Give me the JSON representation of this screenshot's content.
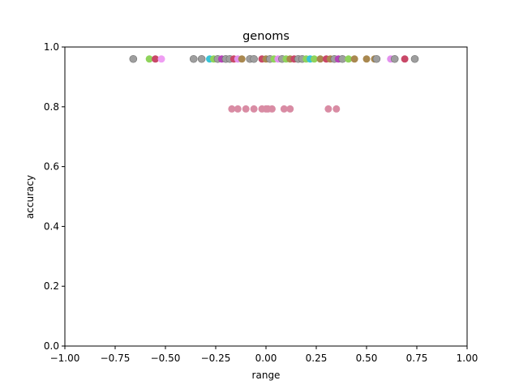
{
  "chart_data": {
    "type": "scatter",
    "title": "genoms",
    "xlabel": "range",
    "ylabel": "accuracy",
    "xlim": [
      -1.0,
      1.0
    ],
    "ylim": [
      0.0,
      1.0
    ],
    "x_ticks": [
      "−1.00",
      "−0.75",
      "−0.50",
      "−0.25",
      "0.00",
      "0.25",
      "0.50",
      "0.75",
      "1.00"
    ],
    "y_ticks": [
      "0.0",
      "0.2",
      "0.4",
      "0.6",
      "0.8",
      "1.0"
    ],
    "grid": false,
    "legend": "none",
    "points": [
      {
        "x": -0.66,
        "y": 0.96,
        "color": "#9e9e9e"
      },
      {
        "x": -0.58,
        "y": 0.96,
        "color": "#8fd35b"
      },
      {
        "x": -0.55,
        "y": 0.96,
        "color": "#c94868"
      },
      {
        "x": -0.52,
        "y": 0.96,
        "color": "#ef9ef3"
      },
      {
        "x": -0.36,
        "y": 0.96,
        "color": "#9e9e9e"
      },
      {
        "x": -0.32,
        "y": 0.96,
        "color": "#9e9e9e"
      },
      {
        "x": -0.28,
        "y": 0.96,
        "color": "#37c4d8"
      },
      {
        "x": -0.26,
        "y": 0.96,
        "color": "#8fd35b"
      },
      {
        "x": -0.24,
        "y": 0.96,
        "color": "#9e9e9e"
      },
      {
        "x": -0.22,
        "y": 0.96,
        "color": "#b543b8"
      },
      {
        "x": -0.2,
        "y": 0.96,
        "color": "#9e9e9e"
      },
      {
        "x": -0.18,
        "y": 0.96,
        "color": "#9e9e9e"
      },
      {
        "x": -0.16,
        "y": 0.96,
        "color": "#c94868"
      },
      {
        "x": -0.14,
        "y": 0.96,
        "color": "#e391ee"
      },
      {
        "x": -0.12,
        "y": 0.96,
        "color": "#a9884f"
      },
      {
        "x": -0.08,
        "y": 0.96,
        "color": "#9e9e9e"
      },
      {
        "x": -0.06,
        "y": 0.96,
        "color": "#9e9e9e"
      },
      {
        "x": -0.02,
        "y": 0.96,
        "color": "#c94868"
      },
      {
        "x": 0.0,
        "y": 0.96,
        "color": "#a9884f"
      },
      {
        "x": 0.02,
        "y": 0.96,
        "color": "#9e9e9e"
      },
      {
        "x": 0.04,
        "y": 0.96,
        "color": "#8fd35b"
      },
      {
        "x": 0.06,
        "y": 0.96,
        "color": "#e391ee"
      },
      {
        "x": 0.08,
        "y": 0.96,
        "color": "#9e9e9e"
      },
      {
        "x": 0.1,
        "y": 0.96,
        "color": "#8fd35b"
      },
      {
        "x": 0.12,
        "y": 0.96,
        "color": "#a9884f"
      },
      {
        "x": 0.14,
        "y": 0.96,
        "color": "#c94868"
      },
      {
        "x": 0.16,
        "y": 0.96,
        "color": "#9e9e9e"
      },
      {
        "x": 0.18,
        "y": 0.96,
        "color": "#9e9e9e"
      },
      {
        "x": 0.2,
        "y": 0.96,
        "color": "#8fd35b"
      },
      {
        "x": 0.22,
        "y": 0.96,
        "color": "#37c4d8"
      },
      {
        "x": 0.24,
        "y": 0.96,
        "color": "#8fd35b"
      },
      {
        "x": 0.27,
        "y": 0.96,
        "color": "#a9884f"
      },
      {
        "x": 0.3,
        "y": 0.96,
        "color": "#c94868"
      },
      {
        "x": 0.32,
        "y": 0.96,
        "color": "#a9884f"
      },
      {
        "x": 0.34,
        "y": 0.96,
        "color": "#9e9e9e"
      },
      {
        "x": 0.36,
        "y": 0.96,
        "color": "#b543b8"
      },
      {
        "x": 0.38,
        "y": 0.96,
        "color": "#9e9e9e"
      },
      {
        "x": 0.41,
        "y": 0.96,
        "color": "#8fd35b"
      },
      {
        "x": 0.44,
        "y": 0.96,
        "color": "#a9884f"
      },
      {
        "x": 0.5,
        "y": 0.96,
        "color": "#a9884f"
      },
      {
        "x": 0.54,
        "y": 0.96,
        "color": "#a9884f"
      },
      {
        "x": 0.55,
        "y": 0.96,
        "color": "#9e9e9e"
      },
      {
        "x": 0.62,
        "y": 0.96,
        "color": "#e391ee"
      },
      {
        "x": 0.64,
        "y": 0.96,
        "color": "#9e9e9e"
      },
      {
        "x": 0.69,
        "y": 0.96,
        "color": "#c94868"
      },
      {
        "x": 0.74,
        "y": 0.96,
        "color": "#9e9e9e"
      },
      {
        "x": -0.17,
        "y": 0.793,
        "color": "#d98ca4"
      },
      {
        "x": -0.14,
        "y": 0.793,
        "color": "#d98ca4"
      },
      {
        "x": -0.1,
        "y": 0.793,
        "color": "#d98ca4"
      },
      {
        "x": -0.06,
        "y": 0.793,
        "color": "#d98ca4"
      },
      {
        "x": -0.02,
        "y": 0.793,
        "color": "#d98ca4"
      },
      {
        "x": 0.0,
        "y": 0.793,
        "color": "#d98ca4"
      },
      {
        "x": 0.01,
        "y": 0.793,
        "color": "#d98ca4"
      },
      {
        "x": 0.03,
        "y": 0.793,
        "color": "#d98ca4"
      },
      {
        "x": 0.09,
        "y": 0.793,
        "color": "#d98ca4"
      },
      {
        "x": 0.12,
        "y": 0.793,
        "color": "#d98ca4"
      },
      {
        "x": 0.31,
        "y": 0.793,
        "color": "#d98ca4"
      },
      {
        "x": 0.35,
        "y": 0.793,
        "color": "#d98ca4"
      }
    ]
  }
}
